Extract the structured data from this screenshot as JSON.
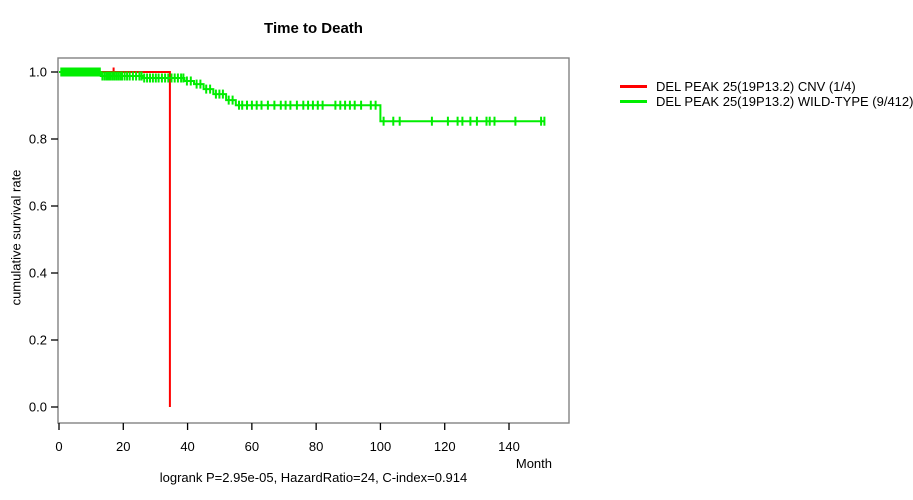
{
  "chart_data": {
    "type": "line",
    "subtype": "kaplan-meier-survival",
    "title": "Time to Death",
    "xlabel": "Month",
    "ylabel": "cumulative survival rate",
    "annotation": "logrank P=2.95e-05, HazardRatio=24, C-index=0.914",
    "xlim": [
      0,
      158
    ],
    "ylim": [
      0,
      1.0
    ],
    "x_ticks": [
      "0",
      "20",
      "40",
      "60",
      "80",
      "100",
      "120",
      "140"
    ],
    "x_tick_values": [
      0,
      20,
      40,
      60,
      80,
      100,
      120,
      140
    ],
    "y_ticks": [
      "0.0",
      "0.2",
      "0.4",
      "0.6",
      "0.8",
      "1.0"
    ],
    "y_tick_values": [
      0,
      0.2,
      0.4,
      0.6,
      0.8,
      1.0
    ],
    "grid": false,
    "legend_position": "right-outside",
    "frame_color": "#828282",
    "tick_color": "#000000",
    "series": [
      {
        "name": "DEL PEAK 25(19P13.2) CNV (1/4)",
        "color": "#ff0000",
        "steps": [
          [
            0,
            1.0
          ],
          [
            34.5,
            1.0
          ],
          [
            34.5,
            0.0
          ]
        ],
        "censors": [
          [
            9,
            1.0
          ],
          [
            17,
            1.0
          ]
        ]
      },
      {
        "name": "DEL PEAK 25(19P13.2) WILD-TYPE (9/412)",
        "color": "#00ee00",
        "steps": [
          [
            0,
            1.0
          ],
          [
            13,
            1.0
          ],
          [
            13,
            0.988
          ],
          [
            26,
            0.988
          ],
          [
            26,
            0.982
          ],
          [
            39,
            0.982
          ],
          [
            39,
            0.973
          ],
          [
            42,
            0.973
          ],
          [
            42,
            0.964
          ],
          [
            45,
            0.964
          ],
          [
            45,
            0.949
          ],
          [
            48,
            0.949
          ],
          [
            48,
            0.934
          ],
          [
            52,
            0.934
          ],
          [
            52,
            0.916
          ],
          [
            55,
            0.916
          ],
          [
            55,
            0.901
          ],
          [
            100,
            0.901
          ],
          [
            100,
            0.853
          ],
          [
            151,
            0.853
          ]
        ],
        "censors": [
          [
            0.7,
            1.0
          ],
          [
            1.2,
            1.0
          ],
          [
            1.7,
            1.0
          ],
          [
            2.2,
            1.0
          ],
          [
            2.7,
            1.0
          ],
          [
            3.2,
            1.0
          ],
          [
            3.7,
            1.0
          ],
          [
            4.2,
            1.0
          ],
          [
            4.7,
            1.0
          ],
          [
            5.2,
            1.0
          ],
          [
            5.7,
            1.0
          ],
          [
            6.2,
            1.0
          ],
          [
            6.7,
            1.0
          ],
          [
            7.2,
            1.0
          ],
          [
            7.7,
            1.0
          ],
          [
            8.2,
            1.0
          ],
          [
            8.7,
            1.0
          ],
          [
            9.2,
            1.0
          ],
          [
            9.7,
            1.0
          ],
          [
            10.2,
            1.0
          ],
          [
            10.7,
            1.0
          ],
          [
            11.2,
            1.0
          ],
          [
            11.7,
            1.0
          ],
          [
            12.2,
            1.0
          ],
          [
            12.7,
            1.0
          ],
          [
            13.5,
            0.988
          ],
          [
            14.2,
            0.988
          ],
          [
            14.8,
            0.988
          ],
          [
            15.4,
            0.988
          ],
          [
            16,
            0.988
          ],
          [
            16.6,
            0.988
          ],
          [
            17.2,
            0.988
          ],
          [
            17.8,
            0.988
          ],
          [
            18.4,
            0.988
          ],
          [
            19,
            0.988
          ],
          [
            19.6,
            0.988
          ],
          [
            20.4,
            0.988
          ],
          [
            21.2,
            0.988
          ],
          [
            22,
            0.988
          ],
          [
            23,
            0.988
          ],
          [
            24,
            0.988
          ],
          [
            25,
            0.988
          ],
          [
            25.7,
            0.988
          ],
          [
            26.5,
            0.982
          ],
          [
            27.4,
            0.982
          ],
          [
            28.3,
            0.982
          ],
          [
            29.2,
            0.982
          ],
          [
            30.1,
            0.982
          ],
          [
            31,
            0.982
          ],
          [
            32,
            0.982
          ],
          [
            33,
            0.982
          ],
          [
            34,
            0.982
          ],
          [
            35,
            0.982
          ],
          [
            36,
            0.982
          ],
          [
            37,
            0.982
          ],
          [
            38,
            0.982
          ],
          [
            38.7,
            0.982
          ],
          [
            39.8,
            0.973
          ],
          [
            41,
            0.973
          ],
          [
            42.8,
            0.964
          ],
          [
            44,
            0.964
          ],
          [
            45.8,
            0.949
          ],
          [
            47,
            0.949
          ],
          [
            48.8,
            0.934
          ],
          [
            49.9,
            0.934
          ],
          [
            51,
            0.934
          ],
          [
            52.8,
            0.916
          ],
          [
            54,
            0.916
          ],
          [
            56,
            0.901
          ],
          [
            57,
            0.901
          ],
          [
            58.5,
            0.901
          ],
          [
            60,
            0.901
          ],
          [
            61.5,
            0.901
          ],
          [
            63,
            0.901
          ],
          [
            65,
            0.901
          ],
          [
            67,
            0.901
          ],
          [
            69,
            0.901
          ],
          [
            70.5,
            0.901
          ],
          [
            72,
            0.901
          ],
          [
            74,
            0.901
          ],
          [
            76,
            0.901
          ],
          [
            77.5,
            0.901
          ],
          [
            79,
            0.901
          ],
          [
            80.5,
            0.901
          ],
          [
            82,
            0.901
          ],
          [
            86,
            0.901
          ],
          [
            87.5,
            0.901
          ],
          [
            89,
            0.901
          ],
          [
            90.5,
            0.901
          ],
          [
            92,
            0.901
          ],
          [
            94,
            0.901
          ],
          [
            97,
            0.901
          ],
          [
            98.5,
            0.901
          ],
          [
            101,
            0.853
          ],
          [
            104,
            0.853
          ],
          [
            106,
            0.853
          ],
          [
            116,
            0.853
          ],
          [
            121,
            0.853
          ],
          [
            124,
            0.853
          ],
          [
            125.5,
            0.853
          ],
          [
            128,
            0.853
          ],
          [
            130,
            0.853
          ],
          [
            133,
            0.853
          ],
          [
            134,
            0.853
          ],
          [
            135.5,
            0.853
          ],
          [
            142,
            0.853
          ],
          [
            150,
            0.853
          ],
          [
            151,
            0.853
          ]
        ]
      }
    ]
  }
}
